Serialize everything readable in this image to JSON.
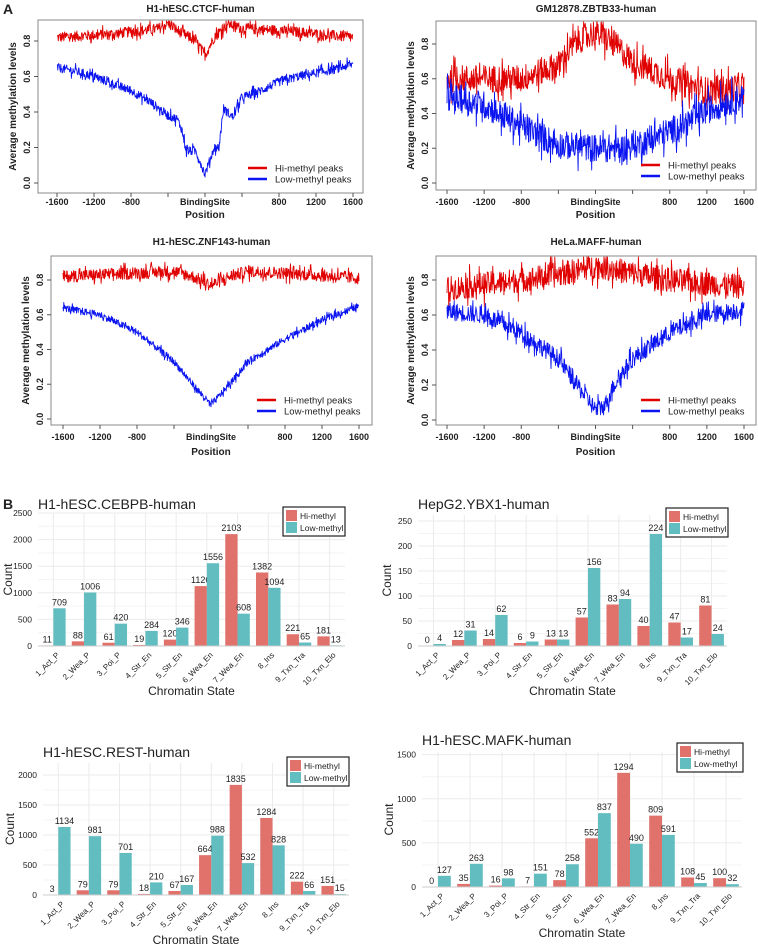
{
  "panel_labels": {
    "a": "A",
    "b": "B"
  },
  "colors": {
    "hi_line": "#e00000",
    "low_line": "#0a14f0",
    "hi_bar": "#e0716b",
    "low_bar": "#62bdc1"
  },
  "chart_data": [
    {
      "type": "line",
      "title": "H1-hESC.CTCF-human",
      "xlabel": "Position",
      "ylabel": "Average methylation levels",
      "xlim": [
        -1600,
        1600
      ],
      "ylim": [
        0,
        0.9
      ],
      "xticks": [
        -1600,
        -1200,
        -800,
        -400,
        0,
        400,
        800,
        1200,
        1600
      ],
      "xtick_labels": [
        "-1600",
        "-1200",
        "-800",
        "",
        "BindingSite",
        "",
        "800",
        "1200",
        "1600"
      ],
      "yticks": [
        0,
        0.2,
        0.4,
        0.6,
        0.8
      ],
      "ytick_labels": [
        "0.0",
        "0.2",
        "0.4",
        "0.6",
        "0.8"
      ],
      "legend": [
        "Hi-methyl peaks",
        "Low-methyl peaks"
      ],
      "legend_position": "bottom-right",
      "series": [
        {
          "name": "Hi-methyl peaks",
          "noise": 0.03,
          "x": [
            -1600,
            -1000,
            -500,
            -400,
            -300,
            -100,
            0,
            100,
            250,
            400,
            800,
            1200,
            1600
          ],
          "y": [
            0.82,
            0.84,
            0.87,
            0.9,
            0.86,
            0.8,
            0.72,
            0.82,
            0.9,
            0.87,
            0.86,
            0.84,
            0.82
          ]
        },
        {
          "name": "Low-methyl peaks",
          "noise": 0.025,
          "x": [
            -1600,
            -1400,
            -1200,
            -1000,
            -800,
            -600,
            -400,
            -300,
            -250,
            -200,
            -100,
            0,
            100,
            150,
            200,
            300,
            400,
            600,
            800,
            1000,
            1200,
            1400,
            1600
          ],
          "y": [
            0.65,
            0.63,
            0.6,
            0.56,
            0.52,
            0.46,
            0.38,
            0.36,
            0.3,
            0.18,
            0.18,
            0.05,
            0.2,
            0.2,
            0.42,
            0.37,
            0.48,
            0.52,
            0.57,
            0.6,
            0.62,
            0.64,
            0.67
          ]
        }
      ]
    },
    {
      "type": "line",
      "title": "GM12878.ZBTB33-human",
      "xlabel": "Position",
      "ylabel": "Average methylation levels",
      "xlim": [
        -1600,
        1600
      ],
      "ylim": [
        0,
        0.9
      ],
      "xticks": [
        -1600,
        -1200,
        -800,
        -400,
        0,
        400,
        800,
        1200,
        1600
      ],
      "xtick_labels": [
        "-1600",
        "-1200",
        "-800",
        "",
        "BindingSite",
        "",
        "800",
        "1200",
        "1600"
      ],
      "yticks": [
        0,
        0.2,
        0.4,
        0.6,
        0.8
      ],
      "ytick_labels": [
        "0.0",
        "0.2",
        "0.4",
        "0.6",
        "0.8"
      ],
      "legend": [
        "Hi-methyl peaks",
        "Low-methyl peaks"
      ],
      "legend_position": "bottom-right",
      "series": [
        {
          "name": "Hi-methyl peaks",
          "noise": 0.08,
          "x": [
            -1600,
            -1200,
            -800,
            -400,
            -200,
            0,
            200,
            400,
            800,
            1200,
            1600
          ],
          "y": [
            0.6,
            0.6,
            0.6,
            0.68,
            0.82,
            0.87,
            0.8,
            0.7,
            0.6,
            0.53,
            0.55
          ]
        },
        {
          "name": "Low-methyl peaks",
          "noise": 0.08,
          "x": [
            -1600,
            -1200,
            -800,
            -400,
            0,
            300,
            600,
            1000,
            1200,
            1600
          ],
          "y": [
            0.5,
            0.45,
            0.33,
            0.22,
            0.2,
            0.2,
            0.25,
            0.35,
            0.42,
            0.5
          ]
        }
      ]
    },
    {
      "type": "line",
      "title": "H1-hESC.ZNF143-human",
      "xlabel": "Position",
      "ylabel": "Average methylation levels",
      "xlim": [
        -1600,
        1600
      ],
      "ylim": [
        0,
        0.9
      ],
      "xticks": [
        -1600,
        -1200,
        -800,
        -400,
        0,
        400,
        800,
        1200,
        1600
      ],
      "xtick_labels": [
        "-1600",
        "-1200",
        "-800",
        "",
        "BindingSite",
        "",
        "800",
        "1200",
        "1600"
      ],
      "yticks": [
        0,
        0.2,
        0.4,
        0.6,
        0.8
      ],
      "ytick_labels": [
        "0.0",
        "0.2",
        "0.4",
        "0.6",
        "0.8"
      ],
      "legend": [
        "Hi-methyl peaks",
        "Low-methyl peaks"
      ],
      "legend_position": "bottom-right",
      "series": [
        {
          "name": "Hi-methyl peaks",
          "noise": 0.035,
          "x": [
            -1600,
            -800,
            -400,
            -200,
            0,
            200,
            400,
            800,
            1600
          ],
          "y": [
            0.82,
            0.84,
            0.85,
            0.82,
            0.77,
            0.82,
            0.85,
            0.84,
            0.81
          ]
        },
        {
          "name": "Low-methyl peaks",
          "noise": 0.02,
          "x": [
            -1600,
            -1200,
            -800,
            -400,
            -200,
            0,
            200,
            400,
            800,
            1200,
            1600
          ],
          "y": [
            0.64,
            0.6,
            0.5,
            0.33,
            0.2,
            0.08,
            0.2,
            0.33,
            0.46,
            0.57,
            0.65
          ]
        }
      ]
    },
    {
      "type": "line",
      "title": "HeLa.MAFF-human",
      "xlabel": "Position",
      "ylabel": "Average methylation levels",
      "xlim": [
        -1600,
        1600
      ],
      "ylim": [
        0,
        0.9
      ],
      "xticks": [
        -1600,
        -1200,
        -800,
        -400,
        0,
        400,
        800,
        1200,
        1600
      ],
      "xtick_labels": [
        "-1600",
        "-1200",
        "-800",
        "",
        "BindingSite",
        "",
        "800",
        "1200",
        "1600"
      ],
      "yticks": [
        0,
        0.2,
        0.4,
        0.6,
        0.8
      ],
      "ytick_labels": [
        "0.0",
        "0.2",
        "0.4",
        "0.6",
        "0.8"
      ],
      "legend": [
        "Hi-methyl peaks",
        "Low-methyl peaks"
      ],
      "legend_position": "bottom-right",
      "series": [
        {
          "name": "Hi-methyl peaks",
          "noise": 0.07,
          "x": [
            -1600,
            -800,
            -400,
            0,
            400,
            800,
            1600
          ],
          "y": [
            0.75,
            0.8,
            0.83,
            0.88,
            0.84,
            0.8,
            0.76
          ]
        },
        {
          "name": "Low-methyl peaks",
          "noise": 0.05,
          "x": [
            -1600,
            -1200,
            -800,
            -400,
            -200,
            0,
            100,
            200,
            400,
            800,
            1200,
            1600
          ],
          "y": [
            0.62,
            0.6,
            0.5,
            0.35,
            0.2,
            0.06,
            0.08,
            0.2,
            0.35,
            0.5,
            0.6,
            0.63
          ]
        }
      ]
    },
    {
      "type": "bar",
      "title": "H1-hESC.CEBPB-human",
      "xlabel": "Chromatin State",
      "ylabel": "Count",
      "ylim": [
        0,
        2500
      ],
      "yticks": [
        0,
        500,
        1000,
        1500,
        2000,
        2500
      ],
      "legend_position": "top-right",
      "categories": [
        "1_Act_P",
        "2_Wea_P",
        "3_Poi_P",
        "4_Str_En",
        "5_Str_En",
        "6_Wea_En",
        "7_Wea_En",
        "8_Ins",
        "9_Txn_Tra",
        "10_Txn_Elo"
      ],
      "series": [
        {
          "name": "Hi-methyl",
          "values": [
            11,
            88,
            61,
            19,
            120,
            1126,
            2103,
            1382,
            221,
            181
          ]
        },
        {
          "name": "Low-methyl",
          "values": [
            709,
            1006,
            420,
            284,
            346,
            1556,
            608,
            1094,
            65,
            13
          ]
        }
      ]
    },
    {
      "type": "bar",
      "title": "HepG2.YBX1-human",
      "xlabel": "Chromatin State",
      "ylabel": "Count",
      "ylim": [
        0,
        262
      ],
      "yticks": [
        0,
        50,
        100,
        150,
        200,
        250
      ],
      "legend_position": "top-right",
      "categories": [
        "1_Act_P",
        "2_Wea_P",
        "3_Poi_P",
        "4_Str_En",
        "5_Str_En",
        "6_Wea_En",
        "7_Wea_En",
        "8_Ins",
        "9_Txn_Tra",
        "10_Txn_Elo"
      ],
      "series": [
        {
          "name": "Hi-methyl",
          "values": [
            0,
            12,
            14,
            6,
            13,
            57,
            83,
            40,
            47,
            81
          ]
        },
        {
          "name": "Low-methyl",
          "values": [
            4,
            31,
            62,
            9,
            13,
            156,
            94,
            224,
            17,
            24
          ]
        }
      ]
    },
    {
      "type": "bar",
      "title": "H1-hESC.REST-human",
      "xlabel": "Chromatin State",
      "ylabel": "Count",
      "ylim": [
        0,
        2200
      ],
      "yticks": [
        0,
        500,
        1000,
        1500,
        2000
      ],
      "legend_position": "top-right",
      "categories": [
        "1_Act_P",
        "2_Wea_P",
        "3_Poi_P",
        "4_Str_En",
        "5_Str_En",
        "6_Wea_En",
        "7_Wea_En",
        "8_Ins",
        "9_Txn_Tra",
        "10_Txn_Elo"
      ],
      "series": [
        {
          "name": "Hi-methyl",
          "values": [
            3,
            79,
            79,
            18,
            67,
            664,
            1835,
            1284,
            222,
            151
          ]
        },
        {
          "name": "Low-methyl",
          "values": [
            1134,
            981,
            701,
            210,
            167,
            988,
            532,
            828,
            66,
            15
          ]
        }
      ]
    },
    {
      "type": "bar",
      "title": "H1-hESC.MAFK-human",
      "xlabel": "Chromatin State",
      "ylabel": "Count",
      "ylim": [
        0,
        1530
      ],
      "yticks": [
        0,
        500,
        1000,
        1500
      ],
      "legend_position": "top-right",
      "categories": [
        "1_Act_P",
        "2_Wea_P",
        "3_Poi_P",
        "4_Str_En",
        "5_Str_En",
        "6_Wea_En",
        "7_Wea_En",
        "8_Ins",
        "9_Txn_Tra",
        "10_Txn_Elo"
      ],
      "series": [
        {
          "name": "Hi-methyl",
          "values": [
            0,
            35,
            16,
            7,
            78,
            552,
            1294,
            809,
            108,
            100
          ]
        },
        {
          "name": "Low-methyl",
          "values": [
            127,
            263,
            98,
            151,
            258,
            837,
            490,
            591,
            45,
            32
          ]
        }
      ]
    }
  ]
}
